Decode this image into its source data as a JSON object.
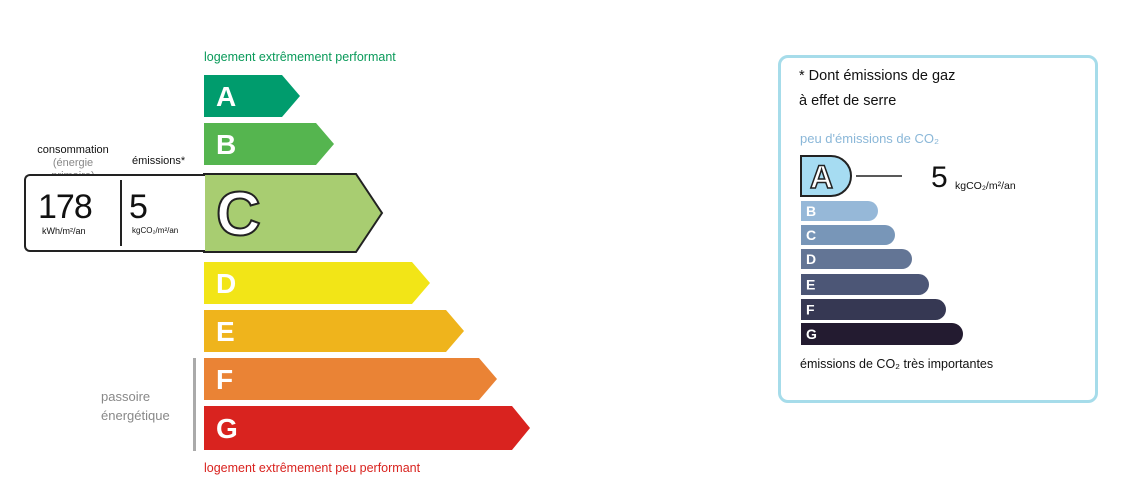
{
  "chart_data": [
    {
      "type": "table",
      "top_label": "logement extrêmement performant",
      "bottom_label": "logement extrêmement peu performant",
      "classes": [
        {
          "letter": "A",
          "color": "#009c6d"
        },
        {
          "letter": "B",
          "color": "#55b54f"
        },
        {
          "letter": "C",
          "color": "#a8cd71"
        },
        {
          "letter": "D",
          "color": "#f2e517"
        },
        {
          "letter": "E",
          "color": "#efb41c"
        },
        {
          "letter": "F",
          "color": "#ea8335"
        },
        {
          "letter": "G",
          "color": "#d9231f"
        }
      ],
      "current_class": "C",
      "consumption_label": "consommation",
      "consumption_sublabel": "(énergie primaire)",
      "emissions_label": "émissions*",
      "consumption_value": "178",
      "consumption_unit": "kWh/m²/an",
      "emissions_value": "5",
      "emissions_unit": "kgCO₂/m²/an",
      "passoire_label": "passoire énergétique"
    },
    {
      "type": "table",
      "title_line1": "* Dont émissions de gaz",
      "title_line2": "à effet de serre",
      "top_label": "peu d'émissions de CO₂",
      "bottom_label": "émissions de CO₂ très importantes",
      "classes": [
        {
          "letter": "A",
          "color": "#a6dcf2"
        },
        {
          "letter": "B",
          "color": "#96b8d8"
        },
        {
          "letter": "C",
          "color": "#7896b8"
        },
        {
          "letter": "D",
          "color": "#637595"
        },
        {
          "letter": "E",
          "color": "#4c5676"
        },
        {
          "letter": "F",
          "color": "#363853"
        },
        {
          "letter": "G",
          "color": "#231b30"
        }
      ],
      "current_class": "A",
      "value": "5",
      "unit": "kgCO₂/m²/an"
    }
  ]
}
